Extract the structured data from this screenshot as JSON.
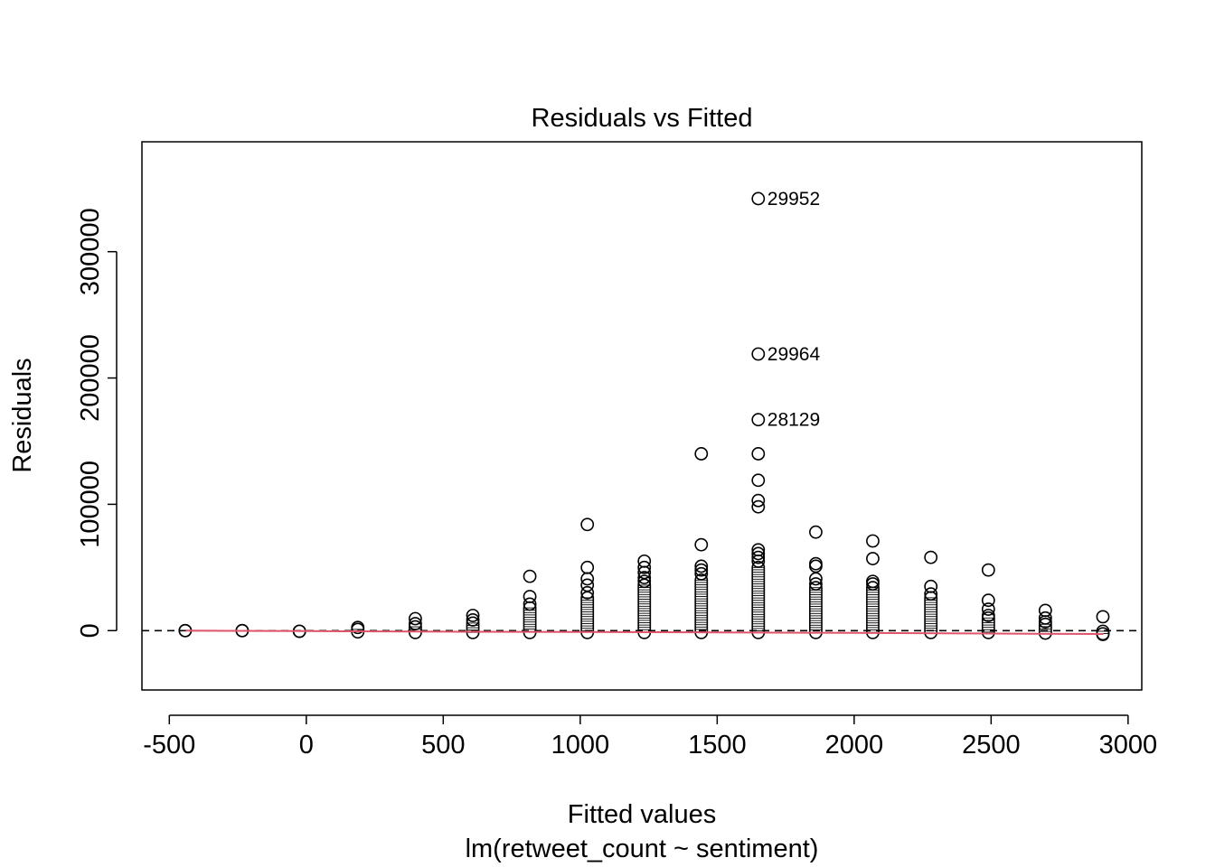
{
  "chart_data": {
    "type": "scatter",
    "title": "Residuals vs Fitted",
    "xlabel": "Fitted values",
    "subtitle": "lm(retweet_count ~ sentiment)",
    "ylabel": "Residuals",
    "xlim": [
      -600,
      3050
    ],
    "ylim": [
      -47000,
      387000
    ],
    "x_ticks": [
      -500,
      0,
      500,
      1000,
      1500,
      2000,
      2500,
      3000
    ],
    "x_tick_labels": [
      "-500",
      "0",
      "500",
      "1000",
      "1500",
      "2000",
      "2500",
      "3000"
    ],
    "y_ticks": [
      0,
      100000,
      200000,
      300000
    ],
    "y_tick_labels": [
      "0",
      "100000",
      "200000",
      "300000"
    ],
    "reference_line": {
      "y": 0,
      "style": "dashed",
      "color": "#000000"
    },
    "smooth_color": "#DF536B",
    "smooth": [
      {
        "x": -440,
        "y": 0
      },
      {
        "x": 0,
        "y": -400
      },
      {
        "x": 500,
        "y": -800
      },
      {
        "x": 1000,
        "y": -1100
      },
      {
        "x": 1500,
        "y": -1400
      },
      {
        "x": 2000,
        "y": -1800
      },
      {
        "x": 2500,
        "y": -2300
      },
      {
        "x": 2910,
        "y": -2700
      }
    ],
    "annotations": [
      {
        "x": 1650,
        "y": 342000,
        "text": "29952"
      },
      {
        "x": 1650,
        "y": 219000,
        "text": "29964"
      },
      {
        "x": 1650,
        "y": 167000,
        "text": "28129"
      }
    ],
    "groups": [
      {
        "x": -442,
        "band_min": 0,
        "band_max": 0,
        "points": [
          0
        ]
      },
      {
        "x": -234,
        "band_min": 0,
        "band_max": 0,
        "points": [
          0
        ]
      },
      {
        "x": -25,
        "band_min": -500,
        "band_max": -500,
        "points": [
          -500
        ]
      },
      {
        "x": 188,
        "band_min": -1000,
        "band_max": 1000,
        "points": [
          2500
        ]
      },
      {
        "x": 398,
        "band_min": -1500,
        "band_max": 3000,
        "points": [
          9500,
          5500
        ]
      },
      {
        "x": 608,
        "band_min": -1500,
        "band_max": 6000,
        "points": [
          12000,
          8500
        ]
      },
      {
        "x": 816,
        "band_min": -1500,
        "band_max": 18000,
        "points": [
          43000,
          27000,
          21000
        ]
      },
      {
        "x": 1026,
        "band_min": -1500,
        "band_max": 26000,
        "points": [
          84000,
          50000,
          41000,
          36000,
          30000
        ]
      },
      {
        "x": 1234,
        "band_min": -1500,
        "band_max": 36000,
        "points": [
          55000,
          50000,
          46000,
          42000,
          39000
        ]
      },
      {
        "x": 1442,
        "band_min": -1500,
        "band_max": 40000,
        "points": [
          140000,
          68000,
          51000,
          48000,
          45000
        ]
      },
      {
        "x": 1650,
        "band_min": -1500,
        "band_max": 50000,
        "points": [
          342000,
          219000,
          167000,
          140000,
          119000,
          103000,
          98000,
          64000,
          61000,
          58000,
          55000
        ]
      },
      {
        "x": 1860,
        "band_min": -1500,
        "band_max": 34000,
        "points": [
          78000,
          53000,
          51000,
          41000,
          37000
        ]
      },
      {
        "x": 2068,
        "band_min": -1500,
        "band_max": 34000,
        "points": [
          71000,
          57000,
          39000,
          37000
        ]
      },
      {
        "x": 2280,
        "band_min": -1500,
        "band_max": 26000,
        "points": [
          58000,
          35000,
          29000
        ]
      },
      {
        "x": 2490,
        "band_min": -1500,
        "band_max": 10000,
        "points": [
          48000,
          24000,
          17000,
          12000
        ]
      },
      {
        "x": 2698,
        "band_min": -2000,
        "band_max": 5000,
        "points": [
          16000,
          10000,
          7000
        ]
      },
      {
        "x": 2908,
        "band_min": -3000,
        "band_max": -500,
        "points": [
          11000,
          -2500
        ]
      }
    ]
  }
}
